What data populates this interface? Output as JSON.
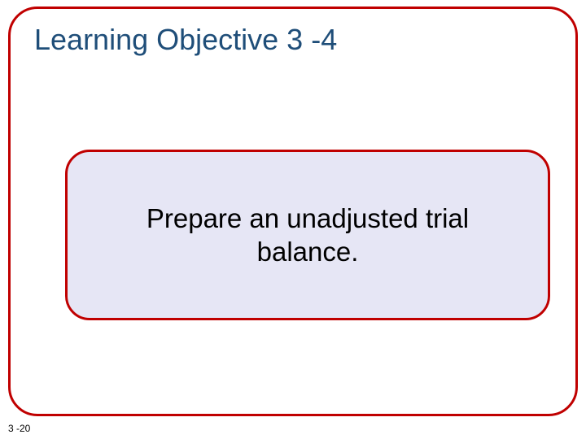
{
  "slide": {
    "title": "Learning Objective 3 -4",
    "content": "Prepare an unadjusted trial balance.",
    "page_number": "3 -20"
  },
  "style": {
    "frame_border_color": "#c00000",
    "frame_border_radius": 36,
    "title_color": "#1f4e79",
    "title_fontsize": 36,
    "content_box_bg": "#e6e6f5",
    "content_box_border_color": "#c00000",
    "content_box_border_radius": 30,
    "content_text_color": "#000000",
    "content_fontsize": 33,
    "page_number_color": "#000000",
    "page_number_fontsize": 12,
    "background_color": "#ffffff"
  }
}
